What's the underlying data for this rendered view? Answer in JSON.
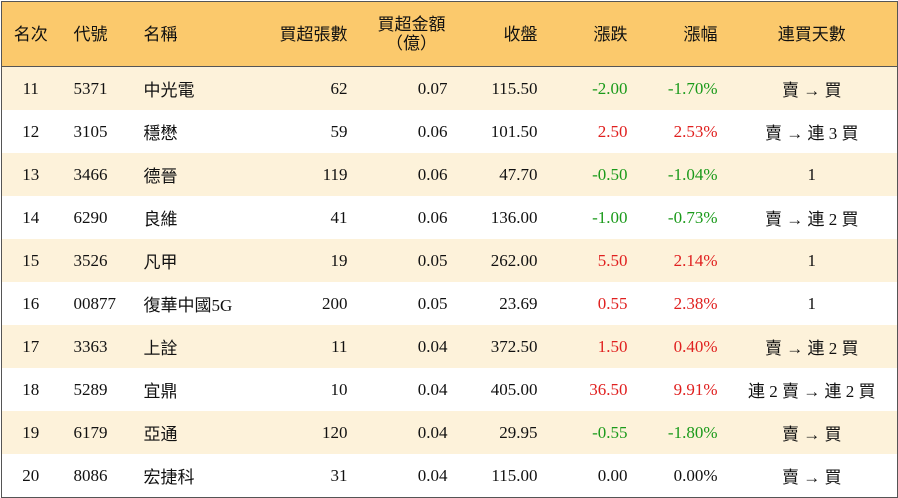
{
  "table": {
    "columns": [
      "名次",
      "代號",
      "名稱",
      "買超張數",
      "買超金額\n（億）",
      "收盤",
      "漲跌",
      "漲幅",
      "連買天數"
    ],
    "rows": [
      [
        "11",
        "5371",
        "中光電",
        "62",
        "0.07",
        "115.50",
        "-2.00",
        "-1.70%",
        "賣 → 買"
      ],
      [
        "12",
        "3105",
        "穩懋",
        "59",
        "0.06",
        "101.50",
        "2.50",
        "2.53%",
        "賣 → 連 3 買"
      ],
      [
        "13",
        "3466",
        "德晉",
        "119",
        "0.06",
        "47.70",
        "-0.50",
        "-1.04%",
        "1"
      ],
      [
        "14",
        "6290",
        "良維",
        "41",
        "0.06",
        "136.00",
        "-1.00",
        "-0.73%",
        "賣 → 連 2 買"
      ],
      [
        "15",
        "3526",
        "凡甲",
        "19",
        "0.05",
        "262.00",
        "5.50",
        "2.14%",
        "1"
      ],
      [
        "16",
        "00877",
        "復華中國5G",
        "200",
        "0.05",
        "23.69",
        "0.55",
        "2.38%",
        "1"
      ],
      [
        "17",
        "3363",
        "上詮",
        "11",
        "0.04",
        "372.50",
        "1.50",
        "0.40%",
        "賣 → 連 2 買"
      ],
      [
        "18",
        "5289",
        "宜鼎",
        "10",
        "0.04",
        "405.00",
        "36.50",
        "9.91%",
        "連 2 賣 → 連 2 買"
      ],
      [
        "19",
        "6179",
        "亞通",
        "120",
        "0.04",
        "29.95",
        "-0.55",
        "-1.80%",
        "賣 → 買"
      ],
      [
        "20",
        "8086",
        "宏捷科",
        "31",
        "0.04",
        "115.00",
        "0.00",
        "0.00%",
        "賣 → 買"
      ]
    ]
  }
}
